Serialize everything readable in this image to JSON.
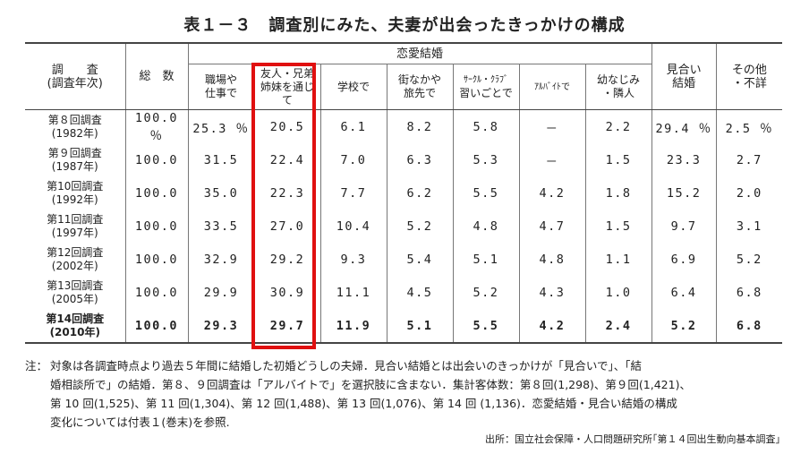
{
  "title": "表１－３　調査別にみた、夫妻が出会ったきっかけの構成",
  "header": {
    "survey_line1": "調　　査",
    "survey_line2": "(調査年次)",
    "total": "総　数",
    "love_group": "恋愛結婚",
    "cols": [
      {
        "line1": "職場や",
        "line2": "仕事で",
        "line3": ""
      },
      {
        "line1": "友人・兄弟",
        "line2": "姉妹を通じ",
        "line3": "て"
      },
      {
        "line1": "学校で",
        "line2": "",
        "line3": ""
      },
      {
        "line1": "街なかや",
        "line2": "旅先で",
        "line3": ""
      },
      {
        "line1": "ｻｰｸﾙ・ｸﾗﾌﾞ",
        "line2": "習いごとで",
        "line3": ""
      },
      {
        "line1": "ｱﾙﾊﾞｲﾄで",
        "line2": "",
        "line3": ""
      },
      {
        "line1": "幼なじみ",
        "line2": "・隣人",
        "line3": ""
      }
    ],
    "arranged_line1": "見合い",
    "arranged_line2": "結婚",
    "other_line1": "その他",
    "other_line2": "・不詳"
  },
  "rows": [
    {
      "survey": "第８回調査",
      "year": "(1982年)",
      "values": [
        "100.0 ％",
        "25.3 ％",
        "20.5",
        "6.1",
        "8.2",
        "5.8",
        "－",
        "2.2",
        "29.4 ％",
        "2.5 ％"
      ]
    },
    {
      "survey": "第９回調査",
      "year": "(1987年)",
      "values": [
        "100.0",
        "31.5",
        "22.4",
        "7.0",
        "6.3",
        "5.3",
        "－",
        "1.5",
        "23.3",
        "2.7"
      ]
    },
    {
      "survey": "第10回調査",
      "year": "(1992年)",
      "values": [
        "100.0",
        "35.0",
        "22.3",
        "7.7",
        "6.2",
        "5.5",
        "4.2",
        "1.8",
        "15.2",
        "2.0"
      ]
    },
    {
      "survey": "第11回調査",
      "year": "(1997年)",
      "values": [
        "100.0",
        "33.5",
        "27.0",
        "10.4",
        "5.2",
        "4.8",
        "4.7",
        "1.5",
        "9.7",
        "3.1"
      ]
    },
    {
      "survey": "第12回調査",
      "year": "(2002年)",
      "values": [
        "100.0",
        "32.9",
        "29.2",
        "9.3",
        "5.4",
        "5.1",
        "4.8",
        "1.1",
        "6.9",
        "5.2"
      ]
    },
    {
      "survey": "第13回調査",
      "year": "(2005年)",
      "values": [
        "100.0",
        "29.9",
        "30.9",
        "11.1",
        "4.5",
        "5.2",
        "4.3",
        "1.0",
        "6.4",
        "6.8"
      ]
    },
    {
      "survey": "第14回調査",
      "year": "(2010年)",
      "values": [
        "100.0",
        "29.3",
        "29.7",
        "11.9",
        "5.1",
        "5.5",
        "4.2",
        "2.4",
        "5.2",
        "6.8"
      ]
    }
  ],
  "note_label": "注：",
  "note_lines": [
    "対象は各調査時点より過去５年間に結婚した初婚どうしの夫婦．見合い結婚とは出会いのきっかけが「見合いで」、「結",
    "婚相談所で」の結婚．第８、９回調査は「アルバイトで」を選択肢に含まない．集計客体数：第８回(1,298)、第９回(1,421)、",
    "第 10 回(1,525)、第 11 回(1,304)、第 12 回(1,488)、第 13 回(1,076)、第 14 回 (1,136)．恋愛結婚・見合い結婚の構成",
    "変化については付表１(巻末)を参照."
  ],
  "source": "出所：国立社会保障・人口問題研究所｢第１４回出生動向基本調査｣",
  "colors": {
    "highlight": "#e01010",
    "text": "#222222",
    "rule": "#444444"
  }
}
